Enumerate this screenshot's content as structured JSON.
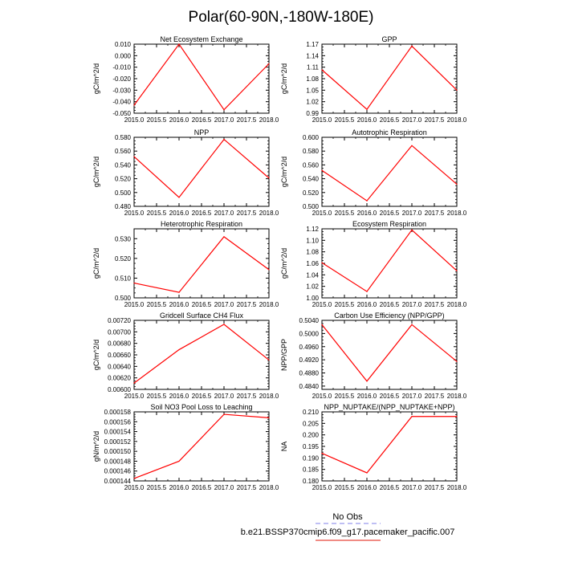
{
  "figure": {
    "title": "Polar(60-90N,-180W-180E)",
    "legend": {
      "entries": [
        {
          "label": "No Obs",
          "color": "#9999ee",
          "dash": true
        },
        {
          "label": "b.e21.BSSP370cmip6.f09_g17.pacemaker_pacific.007",
          "color": "#e8463a",
          "dash": false
        }
      ]
    },
    "colors": {
      "series": "#ff0000",
      "axis": "#000000"
    }
  },
  "chart_data": [
    {
      "type": "line",
      "title": "Net Ecosystem Exchange",
      "ylabel": "gC/m^2/d",
      "x": [
        2015.0,
        2016.0,
        2017.0,
        2018.0
      ],
      "values": [
        -0.043,
        0.01,
        -0.047,
        -0.007
      ],
      "xlim": [
        2015.0,
        2018.0
      ],
      "ylim": [
        -0.05,
        0.01
      ],
      "xticks": [
        "2015.0",
        "2015.5",
        "2016.0",
        "2016.5",
        "2017.0",
        "2017.5",
        "2018.0"
      ],
      "yticks": [
        {
          "v": -0.05,
          "label": "-0.050"
        },
        {
          "v": -0.04,
          "label": "-0.040"
        },
        {
          "v": -0.03,
          "label": "-0.030"
        },
        {
          "v": -0.02,
          "label": "-0.020"
        },
        {
          "v": -0.01,
          "label": "-0.010"
        },
        {
          "v": 0.0,
          "label": "0.000"
        },
        {
          "v": 0.01,
          "label": "0.010"
        }
      ]
    },
    {
      "type": "line",
      "title": "GPP",
      "ylabel": "gC/m^2/d",
      "x": [
        2015.0,
        2016.0,
        2017.0,
        2018.0
      ],
      "values": [
        1.103,
        1.0,
        1.165,
        1.05
      ],
      "xlim": [
        2015.0,
        2018.0
      ],
      "ylim": [
        0.99,
        1.17
      ],
      "xticks": [
        "2015.0",
        "2015.5",
        "2016.0",
        "2016.5",
        "2017.0",
        "2017.5",
        "2018.0"
      ],
      "yticks": [
        {
          "v": 0.99,
          "label": "0.99"
        },
        {
          "v": 1.02,
          "label": "1.02"
        },
        {
          "v": 1.05,
          "label": "1.05"
        },
        {
          "v": 1.08,
          "label": "1.08"
        },
        {
          "v": 1.11,
          "label": "1.11"
        },
        {
          "v": 1.14,
          "label": "1.14"
        },
        {
          "v": 1.17,
          "label": "1.17"
        }
      ]
    },
    {
      "type": "line",
      "title": "NPP",
      "ylabel": "gC/m^2/d",
      "x": [
        2015.0,
        2016.0,
        2017.0,
        2018.0
      ],
      "values": [
        0.552,
        0.493,
        0.577,
        0.521
      ],
      "xlim": [
        2015.0,
        2018.0
      ],
      "ylim": [
        0.48,
        0.58
      ],
      "xticks": [
        "2015.0",
        "2015.5",
        "2016.0",
        "2016.5",
        "2017.0",
        "2017.5",
        "2018.0"
      ],
      "yticks": [
        {
          "v": 0.48,
          "label": "0.480"
        },
        {
          "v": 0.5,
          "label": "0.500"
        },
        {
          "v": 0.52,
          "label": "0.520"
        },
        {
          "v": 0.54,
          "label": "0.540"
        },
        {
          "v": 0.56,
          "label": "0.560"
        },
        {
          "v": 0.58,
          "label": "0.580"
        }
      ]
    },
    {
      "type": "line",
      "title": "Autotrophic Respiration",
      "ylabel": "gC/m^2/d",
      "x": [
        2015.0,
        2016.0,
        2017.0,
        2018.0
      ],
      "values": [
        0.552,
        0.508,
        0.588,
        0.532
      ],
      "xlim": [
        2015.0,
        2018.0
      ],
      "ylim": [
        0.5,
        0.6
      ],
      "xticks": [
        "2015.0",
        "2015.5",
        "2016.0",
        "2016.5",
        "2017.0",
        "2017.5",
        "2018.0"
      ],
      "yticks": [
        {
          "v": 0.5,
          "label": "0.500"
        },
        {
          "v": 0.52,
          "label": "0.520"
        },
        {
          "v": 0.54,
          "label": "0.540"
        },
        {
          "v": 0.56,
          "label": "0.560"
        },
        {
          "v": 0.58,
          "label": "0.580"
        },
        {
          "v": 0.6,
          "label": "0.600"
        }
      ]
    },
    {
      "type": "line",
      "title": "Heterotrophic Respiration",
      "ylabel": "gC/m^2/d",
      "x": [
        2015.0,
        2016.0,
        2017.0,
        2018.0
      ],
      "values": [
        0.5075,
        0.5028,
        0.531,
        0.5143
      ],
      "xlim": [
        2015.0,
        2018.0
      ],
      "ylim": [
        0.5,
        0.535
      ],
      "xticks": [
        "2015.0",
        "2015.5",
        "2016.0",
        "2016.5",
        "2017.0",
        "2017.5",
        "2018.0"
      ],
      "yticks": [
        {
          "v": 0.5,
          "label": "0.500"
        },
        {
          "v": 0.51,
          "label": "0.510"
        },
        {
          "v": 0.52,
          "label": "0.520"
        },
        {
          "v": 0.53,
          "label": "0.530"
        }
      ]
    },
    {
      "type": "line",
      "title": "Ecosystem Respiration",
      "ylabel": "gC/m^2/d",
      "x": [
        2015.0,
        2016.0,
        2017.0,
        2018.0
      ],
      "values": [
        1.061,
        1.011,
        1.118,
        1.047
      ],
      "xlim": [
        2015.0,
        2018.0
      ],
      "ylim": [
        1.0,
        1.12
      ],
      "xticks": [
        "2015.0",
        "2015.5",
        "2016.0",
        "2016.5",
        "2017.0",
        "2017.5",
        "2018.0"
      ],
      "yticks": [
        {
          "v": 1.0,
          "label": "1.00"
        },
        {
          "v": 1.02,
          "label": "1.02"
        },
        {
          "v": 1.04,
          "label": "1.04"
        },
        {
          "v": 1.06,
          "label": "1.06"
        },
        {
          "v": 1.08,
          "label": "1.08"
        },
        {
          "v": 1.1,
          "label": "1.10"
        },
        {
          "v": 1.12,
          "label": "1.12"
        }
      ]
    },
    {
      "type": "line",
      "title": "Gridcell Surface CH4 Flux",
      "ylabel": "gC/m^2/d",
      "x": [
        2015.0,
        2016.0,
        2017.0,
        2018.0
      ],
      "values": [
        0.00611,
        0.00669,
        0.00713,
        0.00651
      ],
      "xlim": [
        2015.0,
        2018.0
      ],
      "ylim": [
        0.006,
        0.0072
      ],
      "xticks": [
        "2015.0",
        "2015.5",
        "2016.0",
        "2016.5",
        "2017.0",
        "2017.5",
        "2018.0"
      ],
      "yticks": [
        {
          "v": 0.006,
          "label": "0.00600"
        },
        {
          "v": 0.0062,
          "label": "0.00620"
        },
        {
          "v": 0.0064,
          "label": "0.00640"
        },
        {
          "v": 0.0066,
          "label": "0.00660"
        },
        {
          "v": 0.0068,
          "label": "0.00680"
        },
        {
          "v": 0.007,
          "label": "0.00700"
        },
        {
          "v": 0.0072,
          "label": "0.00720"
        }
      ]
    },
    {
      "type": "line",
      "title": "Carbon Use Efficiency (NPP/GPP)",
      "ylabel": "NPP/GPP",
      "x": [
        2015.0,
        2016.0,
        2017.0,
        2018.0
      ],
      "values": [
        0.5027,
        0.4855,
        0.5027,
        0.4915
      ],
      "xlim": [
        2015.0,
        2018.0
      ],
      "ylim": [
        0.483,
        0.504
      ],
      "xticks": [
        "2015.0",
        "2015.5",
        "2016.0",
        "2016.5",
        "2017.0",
        "2017.5",
        "2018.0"
      ],
      "yticks": [
        {
          "v": 0.484,
          "label": "0.4840"
        },
        {
          "v": 0.488,
          "label": "0.4880"
        },
        {
          "v": 0.492,
          "label": "0.4920"
        },
        {
          "v": 0.496,
          "label": "0.4960"
        },
        {
          "v": 0.5,
          "label": "0.5000"
        },
        {
          "v": 0.504,
          "label": "0.5040"
        }
      ]
    },
    {
      "type": "line",
      "title": "Soil NO3 Pool Loss to Leaching",
      "ylabel": "gN/m^2/d",
      "x": [
        2015.0,
        2016.0,
        2017.0,
        2018.0
      ],
      "values": [
        0.0001445,
        0.000148,
        0.0001575,
        0.0001568
      ],
      "xlim": [
        2015.0,
        2018.0
      ],
      "ylim": [
        0.000144,
        0.000158
      ],
      "xticks": [
        "2015.0",
        "2015.5",
        "2016.0",
        "2016.5",
        "2017.0",
        "2017.5",
        "2018.0"
      ],
      "yticks": [
        {
          "v": 0.000144,
          "label": "0.000144"
        },
        {
          "v": 0.000146,
          "label": "0.000146"
        },
        {
          "v": 0.000148,
          "label": "0.000148"
        },
        {
          "v": 0.00015,
          "label": "0.000150"
        },
        {
          "v": 0.000152,
          "label": "0.000152"
        },
        {
          "v": 0.000154,
          "label": "0.000154"
        },
        {
          "v": 0.000156,
          "label": "0.000156"
        },
        {
          "v": 0.000158,
          "label": "0.000158"
        }
      ]
    },
    {
      "type": "line",
      "title": "NPP_NUPTAKE/(NPP_NUPTAKE+NPP)",
      "ylabel": "NA",
      "x": [
        2015.0,
        2016.0,
        2017.0,
        2018.0
      ],
      "values": [
        0.192,
        0.1835,
        0.208,
        0.208
      ],
      "xlim": [
        2015.0,
        2018.0
      ],
      "ylim": [
        0.18,
        0.21
      ],
      "xticks": [
        "2015.0",
        "2015.5",
        "2016.0",
        "2016.5",
        "2017.0",
        "2017.5",
        "2018.0"
      ],
      "yticks": [
        {
          "v": 0.18,
          "label": "0.180"
        },
        {
          "v": 0.185,
          "label": "0.185"
        },
        {
          "v": 0.19,
          "label": "0.190"
        },
        {
          "v": 0.195,
          "label": "0.195"
        },
        {
          "v": 0.2,
          "label": "0.200"
        },
        {
          "v": 0.205,
          "label": "0.205"
        },
        {
          "v": 0.21,
          "label": "0.210"
        }
      ]
    }
  ]
}
